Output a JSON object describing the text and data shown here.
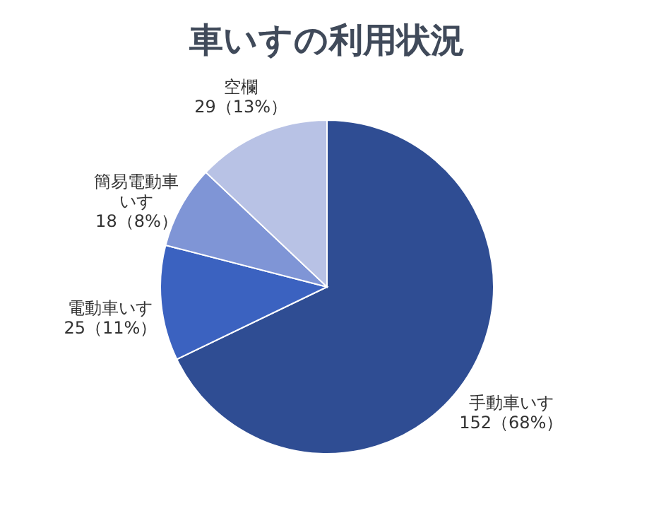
{
  "chart_data": {
    "type": "pie",
    "title": "車いすの利用状況",
    "categories": [
      "手動車いす",
      "電動車いす",
      "簡易電動車いす",
      "空欄"
    ],
    "values": [
      152,
      25,
      18,
      29
    ],
    "value_labels": [
      "152（68%）",
      "25（11%）",
      "18（8%）",
      "29（13%）"
    ],
    "colors": [
      "#2f4d93",
      "#3b62c0",
      "#7f95d6",
      "#b8c2e5"
    ]
  }
}
